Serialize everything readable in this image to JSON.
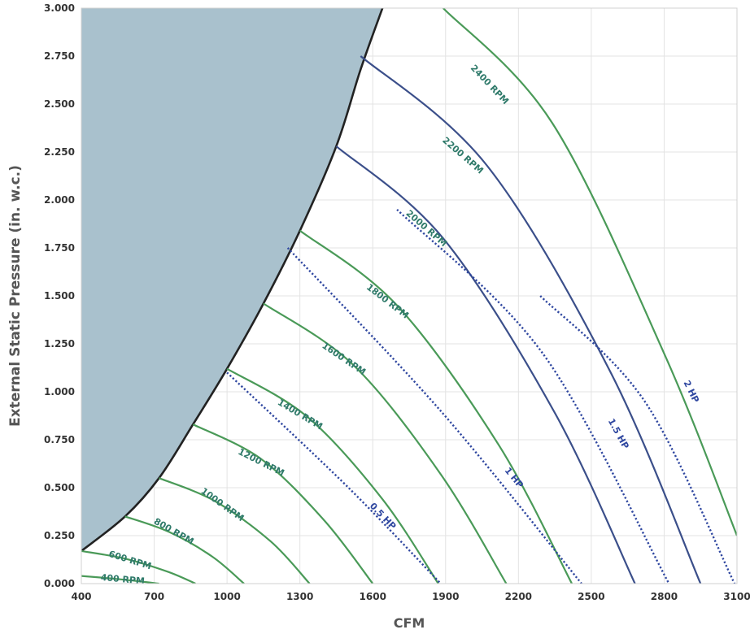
{
  "chart_data": {
    "type": "line",
    "title": "",
    "xlabel": "CFM",
    "ylabel": "External Static Pressure (in. w.c.)",
    "xlim": [
      400,
      3100
    ],
    "ylim": [
      0,
      3
    ],
    "x_ticks": [
      "400",
      "700",
      "1000",
      "1300",
      "1600",
      "1900",
      "2200",
      "2500",
      "2800",
      "3100"
    ],
    "y_ticks": [
      "0.000",
      "0.250",
      "0.500",
      "0.750",
      "1.000",
      "1.250",
      "1.500",
      "1.750",
      "2.000",
      "2.250",
      "2.500",
      "2.750",
      "3.000"
    ],
    "grid": true,
    "colors": {
      "rpm": "#4a9a58",
      "rpm_highlight": "#3b4f8a",
      "hp": "#2f47a0",
      "region_fill": "#a9c1cd",
      "boundary": "#222222",
      "grid": "#e3e3e3",
      "rpm_label": "#2f7a6a",
      "hp_label": "#2f47a0"
    },
    "unstable_region_boundary": {
      "x": [
        400,
        580,
        720,
        860,
        1000,
        1150,
        1300,
        1450,
        1550,
        1640
      ],
      "y": [
        0.17,
        0.35,
        0.55,
        0.83,
        1.12,
        1.46,
        1.84,
        2.28,
        2.68,
        3.0
      ]
    },
    "rpm_series": [
      {
        "name": "400 RPM",
        "x": [
          400,
          580,
          720
        ],
        "y": [
          0.04,
          0.02,
          0.0
        ],
        "label_at": [
          570,
          0.02
        ],
        "highlight": false
      },
      {
        "name": "600 RPM",
        "x": [
          400,
          580,
          760,
          870
        ],
        "y": [
          0.17,
          0.13,
          0.06,
          0.0
        ],
        "label_at": [
          600,
          0.12
        ],
        "highlight": false
      },
      {
        "name": "800 RPM",
        "x": [
          580,
          760,
          940,
          1070
        ],
        "y": [
          0.35,
          0.27,
          0.14,
          0.0
        ],
        "label_at": [
          780,
          0.27
        ],
        "highlight": false
      },
      {
        "name": "1000 RPM",
        "x": [
          720,
          950,
          1180,
          1340
        ],
        "y": [
          0.55,
          0.43,
          0.22,
          0.0
        ],
        "label_at": [
          980,
          0.41
        ],
        "highlight": false
      },
      {
        "name": "1200 RPM",
        "x": [
          860,
          1140,
          1400,
          1600
        ],
        "y": [
          0.83,
          0.65,
          0.33,
          0.0
        ],
        "label_at": [
          1140,
          0.63
        ],
        "highlight": false
      },
      {
        "name": "1400 RPM",
        "x": [
          1000,
          1330,
          1640,
          1870
        ],
        "y": [
          1.12,
          0.87,
          0.44,
          0.0
        ],
        "label_at": [
          1300,
          0.88
        ],
        "highlight": false
      },
      {
        "name": "1600 RPM",
        "x": [
          1150,
          1520,
          1880,
          2150
        ],
        "y": [
          1.46,
          1.14,
          0.57,
          0.0
        ],
        "label_at": [
          1480,
          1.17
        ],
        "highlight": false
      },
      {
        "name": "1800 RPM",
        "x": [
          1300,
          1700,
          2120,
          2420
        ],
        "y": [
          1.84,
          1.45,
          0.72,
          0.0
        ],
        "label_at": [
          1660,
          1.47
        ],
        "highlight": false
      },
      {
        "name": "2000 RPM",
        "x": [
          1450,
          1890,
          2350,
          2680
        ],
        "y": [
          2.28,
          1.8,
          0.89,
          0.0
        ],
        "label_at": [
          1820,
          1.85
        ],
        "highlight": true
      },
      {
        "name": "2200 RPM",
        "x": [
          1550,
          2070,
          2580,
          2950
        ],
        "y": [
          2.75,
          2.18,
          1.1,
          0.0
        ],
        "label_at": [
          1970,
          2.23
        ],
        "highlight": true
      },
      {
        "name": "2400 RPM",
        "x": [
          1890,
          2340,
          2800,
          3100
        ],
        "y": [
          3.0,
          2.4,
          1.2,
          0.25
        ],
        "label_at": [
          2080,
          2.6
        ],
        "highlight": false
      }
    ],
    "hp_series": [
      {
        "name": "0.5 HP",
        "x": [
          1000,
          1500,
          1880
        ],
        "y": [
          1.1,
          0.5,
          0.0
        ],
        "label_at": [
          1640,
          0.35
        ]
      },
      {
        "name": "1 HP",
        "x": [
          1250,
          1880,
          2460
        ],
        "y": [
          1.75,
          0.9,
          0.0
        ],
        "label_at": [
          2180,
          0.55
        ]
      },
      {
        "name": "1.5 HP",
        "x": [
          1700,
          2300,
          2820
        ],
        "y": [
          1.95,
          1.2,
          0.0
        ],
        "label_at": [
          2610,
          0.78
        ]
      },
      {
        "name": "2 HP",
        "x": [
          2290,
          2720,
          3090
        ],
        "y": [
          1.5,
          0.95,
          0.0
        ],
        "label_at": [
          2910,
          1.0
        ]
      }
    ]
  }
}
